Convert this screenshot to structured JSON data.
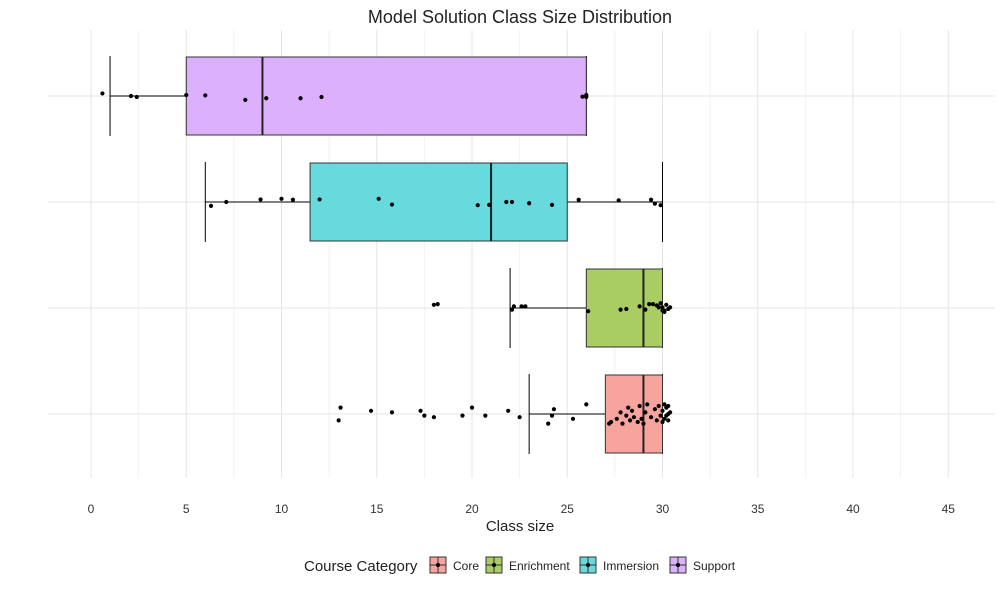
{
  "chart_data": {
    "type": "boxplot",
    "orientation": "horizontal",
    "title": "Model Solution Class Size Distribution",
    "xlabel": "Class size",
    "ylabel": "",
    "xlim": [
      0,
      45
    ],
    "xticks": [
      0,
      5,
      10,
      15,
      20,
      25,
      30,
      35,
      40,
      45
    ],
    "grid": true,
    "legend": {
      "title": "Course Category",
      "placement": "bottom"
    },
    "series": [
      {
        "name": "Core",
        "color": "#F8A49E",
        "box": {
          "whisker_low": 23,
          "q1": 27,
          "median": 29,
          "q3": 30,
          "whisker_high": 30
        },
        "points": [
          [
            13.0,
            0.2
          ],
          [
            13.1,
            -0.2
          ],
          [
            14.7,
            -0.1
          ],
          [
            15.8,
            -0.05
          ],
          [
            17.3,
            -0.1
          ],
          [
            17.5,
            0.05
          ],
          [
            18.0,
            0.1
          ],
          [
            19.5,
            0.05
          ],
          [
            20.0,
            -0.2
          ],
          [
            20.7,
            0.05
          ],
          [
            21.9,
            -0.1
          ],
          [
            22.5,
            0.1
          ],
          [
            24.0,
            0.3
          ],
          [
            24.2,
            0.05
          ],
          [
            24.3,
            -0.15
          ],
          [
            25.3,
            0.15
          ],
          [
            26.0,
            -0.3
          ],
          [
            27.2,
            0.3
          ],
          [
            27.3,
            0.25
          ],
          [
            27.6,
            0.15
          ],
          [
            27.8,
            -0.05
          ],
          [
            27.9,
            0.3
          ],
          [
            28.1,
            0.05
          ],
          [
            28.2,
            -0.2
          ],
          [
            28.3,
            0.2
          ],
          [
            28.4,
            -0.1
          ],
          [
            28.5,
            0.1
          ],
          [
            28.7,
            0.25
          ],
          [
            28.8,
            -0.25
          ],
          [
            28.9,
            0.15
          ],
          [
            29.0,
            0.3
          ],
          [
            29.1,
            -0.05
          ],
          [
            29.2,
            -0.3
          ],
          [
            29.4,
            0.1
          ],
          [
            29.6,
            -0.15
          ],
          [
            29.7,
            0.2
          ],
          [
            29.8,
            -0.25
          ],
          [
            29.9,
            0.05
          ],
          [
            30.0,
            0.25
          ],
          [
            30.0,
            -0.1
          ],
          [
            30.1,
            0.15
          ],
          [
            30.1,
            -0.3
          ],
          [
            30.2,
            0.05
          ],
          [
            30.2,
            -0.2
          ],
          [
            30.3,
            0.0
          ],
          [
            30.3,
            0.2
          ],
          [
            30.4,
            -0.05
          ],
          [
            30.3,
            -0.25
          ]
        ]
      },
      {
        "name": "Enrichment",
        "color": "#A9CC63",
        "box": {
          "whisker_low": 22,
          "q1": 26,
          "median": 29,
          "q3": 30,
          "whisker_high": 30
        },
        "points": [
          [
            18.0,
            -0.1
          ],
          [
            18.2,
            -0.12
          ],
          [
            22.1,
            0.05
          ],
          [
            22.2,
            -0.05
          ],
          [
            22.6,
            -0.05
          ],
          [
            22.8,
            -0.05
          ],
          [
            26.1,
            0.1
          ],
          [
            27.8,
            0.05
          ],
          [
            28.1,
            0.03
          ],
          [
            28.8,
            -0.05
          ],
          [
            29.1,
            0.05
          ],
          [
            29.3,
            -0.12
          ],
          [
            29.7,
            -0.08
          ],
          [
            29.9,
            -0.15
          ],
          [
            30.0,
            0.08
          ],
          [
            30.0,
            -0.02
          ],
          [
            30.1,
            0.12
          ],
          [
            30.2,
            -0.1
          ],
          [
            30.3,
            0.03
          ],
          [
            30.4,
            -0.02
          ],
          [
            30.1,
            0.08
          ],
          [
            29.5,
            -0.12
          ],
          [
            29.8,
            -0.02
          ]
        ]
      },
      {
        "name": "Immersion",
        "color": "#66DADC",
        "box": {
          "whisker_low": 6,
          "q1": 11.5,
          "median": 21,
          "q3": 25,
          "whisker_high": 30
        },
        "points": [
          [
            6.3,
            0.12
          ],
          [
            7.1,
            0.0
          ],
          [
            8.9,
            -0.08
          ],
          [
            10.0,
            -0.1
          ],
          [
            10.6,
            -0.07
          ],
          [
            12.0,
            -0.08
          ],
          [
            15.1,
            -0.1
          ],
          [
            15.8,
            0.08
          ],
          [
            20.3,
            0.1
          ],
          [
            20.9,
            0.09
          ],
          [
            21.8,
            0.0
          ],
          [
            22.1,
            0.0
          ],
          [
            23.0,
            0.04
          ],
          [
            24.2,
            0.09
          ],
          [
            25.6,
            -0.07
          ],
          [
            27.7,
            -0.05
          ],
          [
            29.4,
            -0.07
          ],
          [
            29.6,
            0.05
          ],
          [
            29.9,
            0.1
          ]
        ]
      },
      {
        "name": "Support",
        "color": "#DCB0FC",
        "box": {
          "whisker_low": 1,
          "q1": 5,
          "median": 9,
          "q3": 26,
          "whisker_high": 26
        },
        "points": [
          [
            0.6,
            -0.08
          ],
          [
            2.1,
            0.0
          ],
          [
            2.4,
            0.03
          ],
          [
            5.0,
            -0.03
          ],
          [
            6.0,
            -0.02
          ],
          [
            8.1,
            0.12
          ],
          [
            9.2,
            0.07
          ],
          [
            11.0,
            0.07
          ],
          [
            12.1,
            0.03
          ],
          [
            25.8,
            0.02
          ],
          [
            26.0,
            0.03
          ],
          [
            26.0,
            -0.03
          ]
        ]
      }
    ]
  }
}
